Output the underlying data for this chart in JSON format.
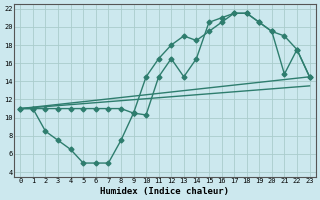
{
  "xlabel": "Humidex (Indice chaleur)",
  "bg_color": "#cce8ee",
  "grid_color": "#aacccc",
  "line_color": "#2e7d6e",
  "xlim": [
    -0.5,
    23.5
  ],
  "ylim": [
    3.5,
    22.5
  ],
  "xticks": [
    0,
    1,
    2,
    3,
    4,
    5,
    6,
    7,
    8,
    9,
    10,
    11,
    12,
    13,
    14,
    15,
    16,
    17,
    18,
    19,
    20,
    21,
    22,
    23
  ],
  "yticks": [
    4,
    6,
    8,
    10,
    12,
    14,
    16,
    18,
    20,
    22
  ],
  "upper_curve_x": [
    0,
    1,
    2,
    3,
    4,
    5,
    6,
    7,
    8,
    9,
    10,
    11,
    12,
    13,
    14,
    15,
    16,
    17,
    18,
    19,
    20,
    21,
    22,
    23
  ],
  "upper_curve_y": [
    11,
    11,
    11,
    11,
    11,
    11,
    11,
    11,
    11,
    10.5,
    14.5,
    16.5,
    18,
    19,
    18.5,
    19.5,
    20.5,
    21.5,
    21.5,
    20.5,
    19.5,
    19.0,
    17.5,
    14.5
  ],
  "lower_curve_x": [
    0,
    1,
    2,
    3,
    4,
    5,
    6,
    7,
    8,
    9,
    10,
    11,
    12,
    13,
    14,
    15,
    16,
    17,
    18,
    19,
    20,
    21,
    22,
    23
  ],
  "lower_curve_y": [
    11,
    11,
    8.5,
    7.5,
    6.5,
    5.0,
    5.0,
    5.0,
    7.5,
    10.5,
    10.3,
    14.5,
    16.5,
    14.5,
    16.5,
    20.5,
    21.0,
    21.5,
    21.5,
    20.5,
    19.5,
    14.8,
    17.5,
    14.5
  ],
  "line1_x": [
    0,
    23
  ],
  "line1_y": [
    11,
    13.5
  ],
  "line2_x": [
    0,
    23
  ],
  "line2_y": [
    11,
    14.5
  ],
  "marker_size": 2.5,
  "line_width": 1.0,
  "font_size": 6.5
}
